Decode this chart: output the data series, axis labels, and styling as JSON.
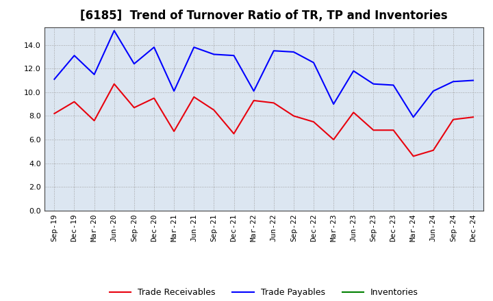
{
  "title": "[6185]  Trend of Turnover Ratio of TR, TP and Inventories",
  "labels": [
    "Sep-19",
    "Dec-19",
    "Mar-20",
    "Jun-20",
    "Sep-20",
    "Dec-20",
    "Mar-21",
    "Jun-21",
    "Sep-21",
    "Dec-21",
    "Mar-22",
    "Jun-22",
    "Sep-22",
    "Dec-22",
    "Mar-23",
    "Jun-23",
    "Sep-23",
    "Dec-23",
    "Mar-24",
    "Jun-24",
    "Sep-24",
    "Dec-24"
  ],
  "trade_receivables": [
    8.2,
    9.2,
    7.6,
    10.7,
    8.7,
    9.5,
    6.7,
    9.6,
    8.5,
    6.5,
    9.3,
    9.1,
    8.0,
    7.5,
    6.0,
    8.3,
    6.8,
    6.8,
    4.6,
    5.1,
    7.7,
    7.9
  ],
  "trade_payables": [
    11.1,
    13.1,
    11.5,
    15.2,
    12.4,
    13.8,
    10.1,
    13.8,
    13.2,
    13.1,
    10.1,
    13.5,
    13.4,
    12.5,
    9.0,
    11.8,
    10.7,
    10.6,
    7.9,
    10.1,
    10.9,
    11.0
  ],
  "inventories_visible": false,
  "color_tr": "#e8000d",
  "color_tp": "#0000ff",
  "color_inv": "#008000",
  "ylim": [
    0,
    15.5
  ],
  "yticks": [
    0.0,
    2.0,
    4.0,
    6.0,
    8.0,
    10.0,
    12.0,
    14.0
  ],
  "plot_bg_color": "#dce6f1",
  "fig_bg_color": "#ffffff",
  "grid_color": "#a0a0a0",
  "title_fontsize": 12,
  "legend_fontsize": 9,
  "tick_fontsize": 8
}
